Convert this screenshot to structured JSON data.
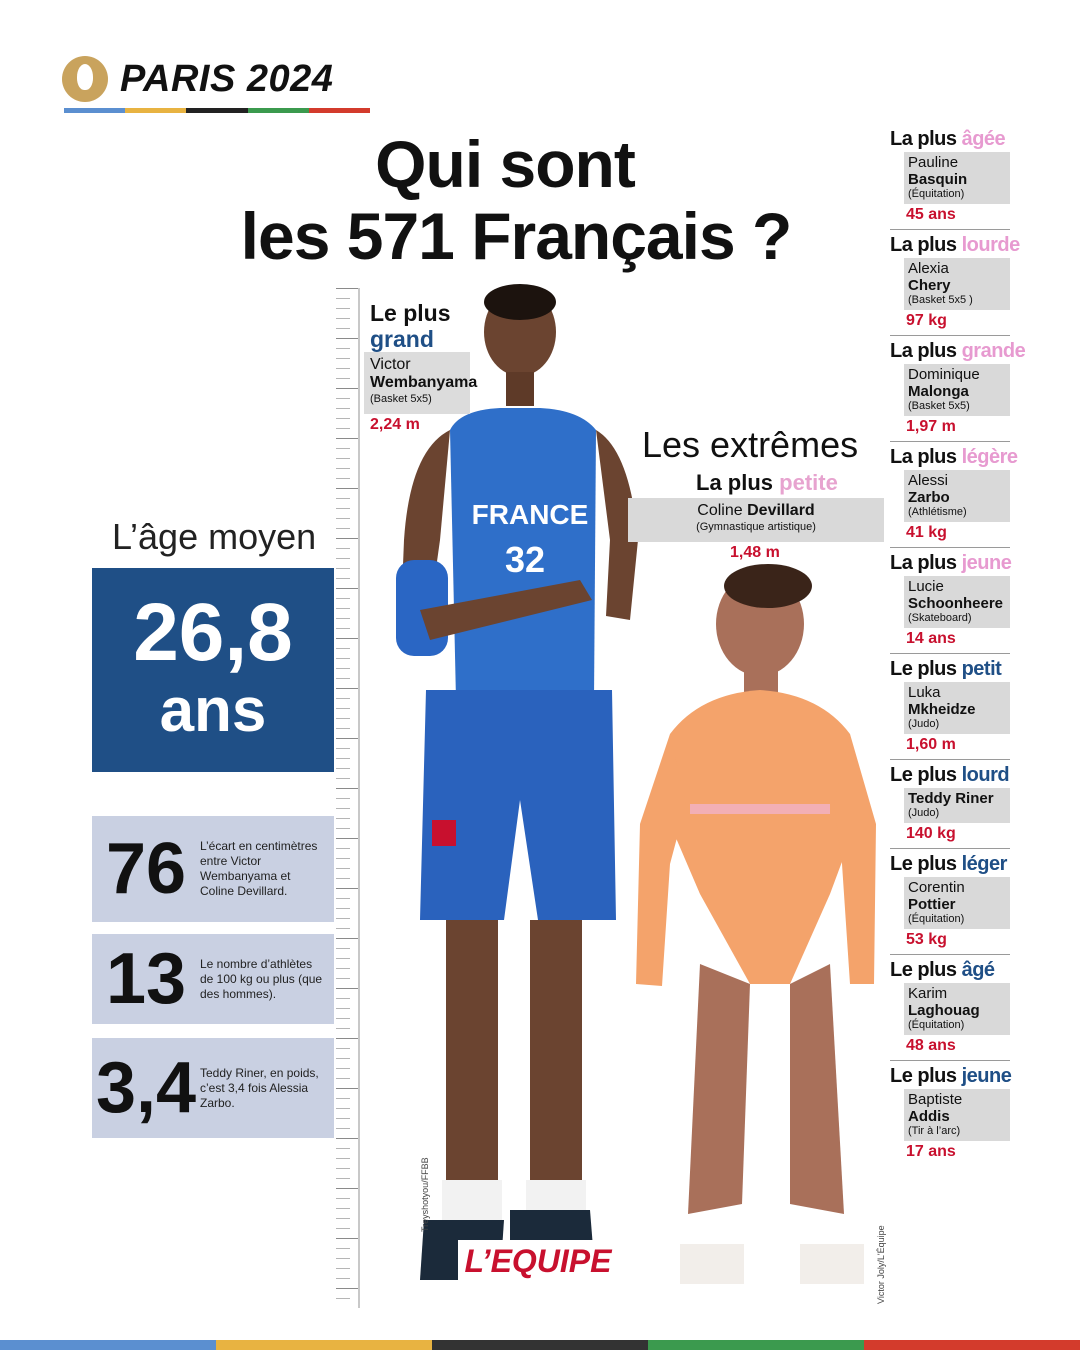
{
  "header": {
    "brand": "PARIS 2024",
    "stripe_colors": [
      "#5b8fd0",
      "#e8b341",
      "#222222",
      "#3b9a4e",
      "#d33b2c"
    ],
    "title_line1": "Qui sont",
    "title_line2": "les 571 Français ?"
  },
  "age": {
    "label": "L’âge moyen",
    "value": "26,8",
    "unit": "ans"
  },
  "stats": [
    {
      "number": "76",
      "text": "L’écart en centimètres entre Victor Wembanyama et Coline Devillard."
    },
    {
      "number": "13",
      "text": "Le nombre d’athlètes de 100 kg ou plus (que des hommes)."
    },
    {
      "number": "3,4",
      "text": "Teddy Riner, en poids, c’est 3,4 fois Alessia Zarbo."
    }
  ],
  "tallest": {
    "lead": "Le plus",
    "accent": "grand",
    "first": "Victor",
    "last": "Wembanyama",
    "sport": "(Basket 5x5)",
    "measure": "2,24 m",
    "credit": "Treyshotyou/FFBB",
    "jersey_text": "FRANCE",
    "jersey_number": "32"
  },
  "extremes": {
    "heading": "Les extrêmes",
    "lead": "La plus",
    "accent": "petite",
    "first": "Coline",
    "last": "Devillard",
    "sport": "(Gymnastique artistique)",
    "measure": "1,48 m",
    "credit": "Victor Joly/L'Équipe"
  },
  "records": [
    {
      "lead": "La plus",
      "accent": "âgée",
      "accent_color": "pink",
      "first": "Pauline",
      "last": "Basquin",
      "sport": "(Équitation)",
      "value": "45 ans"
    },
    {
      "lead": "La plus",
      "accent": "lourde",
      "accent_color": "pink",
      "first": "Alexia",
      "last": "Chery",
      "sport": "(Basket 5x5 )",
      "value": "97 kg"
    },
    {
      "lead": "La plus",
      "accent": "grande",
      "accent_color": "pink",
      "first": "Dominique",
      "last": "Malonga",
      "sport": "(Basket 5x5)",
      "value": "1,97 m"
    },
    {
      "lead": "La plus",
      "accent": "légère",
      "accent_color": "pink",
      "first": "Alessi",
      "last": "Zarbo",
      "sport": "(Athlétisme)",
      "value": "41 kg"
    },
    {
      "lead": "La plus",
      "accent": "jeune",
      "accent_color": "pink",
      "first": "Lucie",
      "last": "Schoonheere",
      "sport": "(Skateboard)",
      "value": "14 ans"
    },
    {
      "lead": "Le plus",
      "accent": "petit",
      "accent_color": "blue",
      "first": "Luka",
      "last": "Mkheidze",
      "sport": "(Judo)",
      "value": "1,60 m"
    },
    {
      "lead": "Le plus",
      "accent": "lourd",
      "accent_color": "blue",
      "first": "",
      "last": "Teddy Riner",
      "sport": "(Judo)",
      "value": "140 kg"
    },
    {
      "lead": "Le plus",
      "accent": "léger",
      "accent_color": "blue",
      "first": "Corentin",
      "last": "Pottier",
      "sport": "(Équitation)",
      "value": "53 kg"
    },
    {
      "lead": "Le plus",
      "accent": "âgé",
      "accent_color": "blue",
      "first": "Karim",
      "last": "Laghouag",
      "sport": "(Équitation)",
      "value": "48 ans"
    },
    {
      "lead": "Le plus",
      "accent": "jeune",
      "accent_color": "blue",
      "first": "Baptiste",
      "last": "Addis",
      "sport": "(Tir à l’arc)",
      "value": "17 ans"
    }
  ],
  "logo": "L’EQUIPE",
  "bottom_stripe_colors": [
    "#5b8fd0",
    "#e8b341",
    "#333333",
    "#3b9a4e",
    "#d33b2c"
  ]
}
